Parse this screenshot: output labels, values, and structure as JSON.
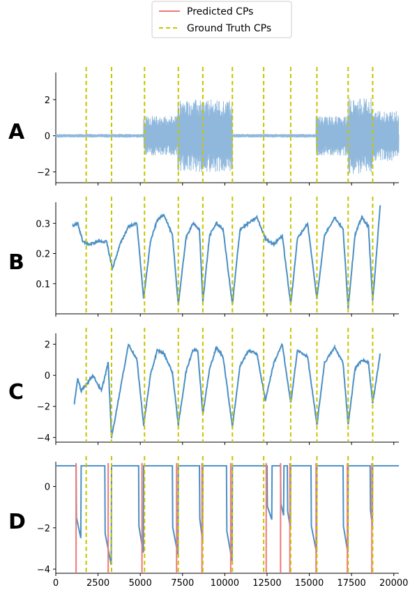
{
  "chart_data": {
    "type": "line",
    "legend": {
      "placement": "top-center",
      "entries": [
        {
          "name": "Predicted CPs",
          "color": "#f07878",
          "style": "solid"
        },
        {
          "name": "Ground Truth CPs",
          "color": "#c8c400",
          "style": "dashed"
        }
      ]
    },
    "xlim": [
      -1000,
      21000
    ],
    "x_ticks": [
      0,
      2500,
      5000,
      7500,
      10000,
      12500,
      15000,
      17500,
      20000
    ],
    "ground_truth_cps": [
      1800,
      3300,
      5250,
      7250,
      8700,
      10450,
      12300,
      13900,
      15450,
      17300,
      18750
    ],
    "predicted_cps": [
      1200,
      3100,
      5100,
      7150,
      8650,
      10350,
      12450,
      13300,
      13850,
      15400,
      17250,
      18700
    ],
    "panels": [
      {
        "label": "A",
        "ylim": [
          -2.6,
          3.5
        ],
        "y_ticks": [
          "2",
          "0",
          "−2"
        ],
        "y_tick_values": [
          2,
          0,
          -2
        ],
        "line_color": "#8fb8dc",
        "signal": {
          "x_range": [
            0,
            20300
          ],
          "segments": [
            {
              "start": 0,
              "end": 5200,
              "amplitude": 0.1
            },
            {
              "start": 5200,
              "end": 7200,
              "amplitude": 1.1
            },
            {
              "start": 7200,
              "end": 10450,
              "amplitude": 2.0
            },
            {
              "start": 10450,
              "end": 15400,
              "amplitude": 0.1
            },
            {
              "start": 15400,
              "end": 17300,
              "amplitude": 1.1
            },
            {
              "start": 17300,
              "end": 18750,
              "amplitude": 2.1
            },
            {
              "start": 18750,
              "end": 20300,
              "amplitude": 1.4
            }
          ]
        }
      },
      {
        "label": "B",
        "ylim": [
          0.0,
          0.37
        ],
        "y_ticks": [
          "0.3",
          "0.2",
          "0.1"
        ],
        "y_tick_values": [
          0.3,
          0.2,
          0.1
        ],
        "line_color": "#4a8fc4",
        "x": [
          1000,
          1300,
          1600,
          2000,
          2500,
          3000,
          3350,
          3800,
          4300,
          4800,
          5200,
          5600,
          6000,
          6400,
          6900,
          7250,
          7700,
          8100,
          8500,
          8700,
          9100,
          9500,
          9900,
          10450,
          10900,
          11400,
          11900,
          12400,
          12900,
          13400,
          13900,
          14300,
          14900,
          15450,
          15900,
          16500,
          17000,
          17300,
          17700,
          18100,
          18500,
          18750,
          19200
        ],
        "values": [
          0.29,
          0.3,
          0.24,
          0.23,
          0.24,
          0.24,
          0.15,
          0.23,
          0.29,
          0.3,
          0.05,
          0.24,
          0.31,
          0.33,
          0.26,
          0.03,
          0.25,
          0.3,
          0.28,
          0.04,
          0.26,
          0.3,
          0.28,
          0.03,
          0.28,
          0.3,
          0.32,
          0.25,
          0.23,
          0.26,
          0.03,
          0.25,
          0.3,
          0.05,
          0.26,
          0.32,
          0.28,
          0.02,
          0.26,
          0.32,
          0.29,
          0.04,
          0.36
        ]
      },
      {
        "label": "C",
        "ylim": [
          -4.3,
          2.7
        ],
        "y_ticks": [
          "2",
          "0",
          "−2",
          "−4"
        ],
        "y_tick_values": [
          2,
          0,
          -2,
          -4
        ],
        "line_color": "#4a8fc4",
        "x": [
          1100,
          1300,
          1500,
          1800,
          2200,
          2700,
          3100,
          3300,
          3800,
          4300,
          4800,
          5200,
          5600,
          6000,
          6400,
          6900,
          7250,
          7700,
          8100,
          8400,
          8700,
          9100,
          9500,
          9900,
          10450,
          10900,
          11400,
          11900,
          12400,
          12900,
          13400,
          13900,
          14300,
          14900,
          15450,
          15900,
          16500,
          17000,
          17300,
          17700,
          18100,
          18500,
          18750,
          19200
        ],
        "values": [
          -1.8,
          -0.2,
          -1.0,
          -0.6,
          0.0,
          -1.0,
          0.8,
          -4.0,
          -1.0,
          2.0,
          1.0,
          -3.2,
          0.0,
          1.6,
          1.4,
          0.2,
          -3.2,
          0.2,
          1.6,
          1.6,
          -2.5,
          0.4,
          1.8,
          1.2,
          -3.3,
          0.6,
          1.6,
          1.4,
          -1.6,
          0.8,
          2.0,
          -1.8,
          1.6,
          1.2,
          -3.2,
          0.8,
          1.8,
          0.8,
          -3.2,
          0.4,
          1.0,
          0.8,
          -1.8,
          1.4
        ]
      },
      {
        "label": "D",
        "ylim": [
          -4.2,
          1.2
        ],
        "y_ticks": [
          "0",
          "−2",
          "−4"
        ],
        "y_tick_values": [
          0,
          -2,
          -4
        ],
        "line_color": "#4a8fc4",
        "baseline": 1.0,
        "dips": [
          {
            "start": 1200,
            "end": 1500,
            "depth": -2.5
          },
          {
            "start": 2900,
            "end": 3300,
            "depth": -3.8
          },
          {
            "start": 4900,
            "end": 5200,
            "depth": -3.2
          },
          {
            "start": 6900,
            "end": 7250,
            "depth": -3.3
          },
          {
            "start": 8500,
            "end": 8700,
            "depth": -2.6
          },
          {
            "start": 10100,
            "end": 10450,
            "depth": -3.6
          },
          {
            "start": 12500,
            "end": 12800,
            "depth": -1.6
          },
          {
            "start": 13300,
            "end": 13500,
            "depth": -1.4
          },
          {
            "start": 13700,
            "end": 13900,
            "depth": -2.0
          },
          {
            "start": 15100,
            "end": 15450,
            "depth": -3.2
          },
          {
            "start": 17000,
            "end": 17300,
            "depth": -3.2
          },
          {
            "start": 18600,
            "end": 18750,
            "depth": -1.9
          }
        ]
      }
    ]
  }
}
